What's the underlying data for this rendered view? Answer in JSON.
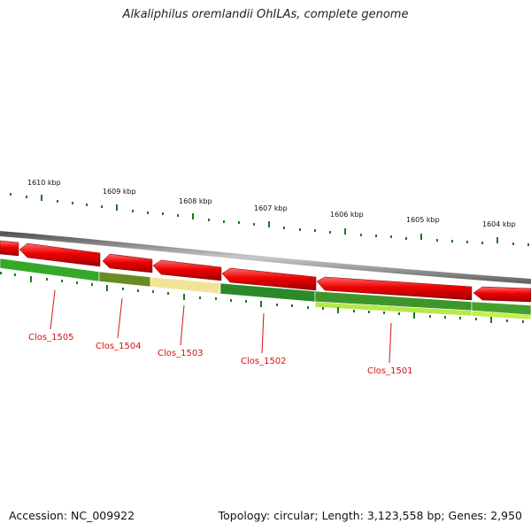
{
  "title": "Alkaliphilus oremlandii OhILAs, complete genome",
  "footer": {
    "accession": "Accession: NC_009922",
    "summary": "Topology: circular; Length: 3,123,558 bp; Genes: 2,950"
  },
  "colors": {
    "forward_gene": "#e8000b",
    "backbone": "#8c8c8c",
    "tick": "#1a7a1a",
    "label": "#d81010"
  },
  "kbp_labels": [
    "1610 kbp",
    "1609 kbp",
    "1608 kbp",
    "1607 kbp",
    "1606 kbp",
    "1605 kbp",
    "1604 kbp"
  ],
  "gene_labels": [
    "Clos_1505",
    "Clos_1504",
    "Clos_1503",
    "Clos_1502",
    "Clos_1501"
  ],
  "lower_track_colors": [
    "#35a82a",
    "#6b8a22",
    "#f1e49a",
    "#2a8a2a",
    "#46a02e",
    "#b6e84a"
  ]
}
